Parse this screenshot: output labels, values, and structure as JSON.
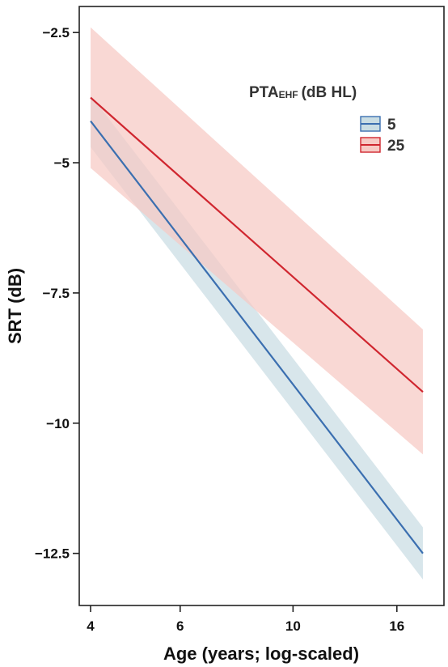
{
  "chart_data": {
    "type": "line",
    "xlabel": "Age (years; log-scaled)",
    "ylabel": "SRT (dB)",
    "x_scale": "log",
    "xlim": [
      3.8,
      19.8
    ],
    "ylim": [
      -13.5,
      -2
    ],
    "x_ticks": [
      4,
      6,
      10,
      16
    ],
    "x_tick_labels": [
      "4",
      "6",
      "10",
      "16"
    ],
    "y_ticks": [
      -2.5,
      -5,
      -7.5,
      -10,
      -12.5
    ],
    "y_tick_labels": [
      "−2.5",
      "−5",
      "−7.5",
      "−10",
      "−12.5"
    ],
    "grid": false,
    "legend": {
      "title_main": "PTA",
      "title_sub": "EHF",
      "title_rest": "(dB HL)",
      "placement": "top-right"
    },
    "series": [
      {
        "name": "5",
        "color": "#3b6fb0",
        "band_color": "#c9dde3",
        "x": [
          4,
          18
        ],
        "y": [
          -4.2,
          -12.5
        ],
        "lower": [
          -4.7,
          -13.0
        ],
        "upper": [
          -3.7,
          -12.0
        ]
      },
      {
        "name": "25",
        "color": "#d0262f",
        "band_color": "#f7c9c4",
        "x": [
          4,
          18
        ],
        "y": [
          -3.75,
          -9.4
        ],
        "lower": [
          -5.1,
          -10.6
        ],
        "upper": [
          -2.4,
          -8.2
        ]
      }
    ]
  }
}
